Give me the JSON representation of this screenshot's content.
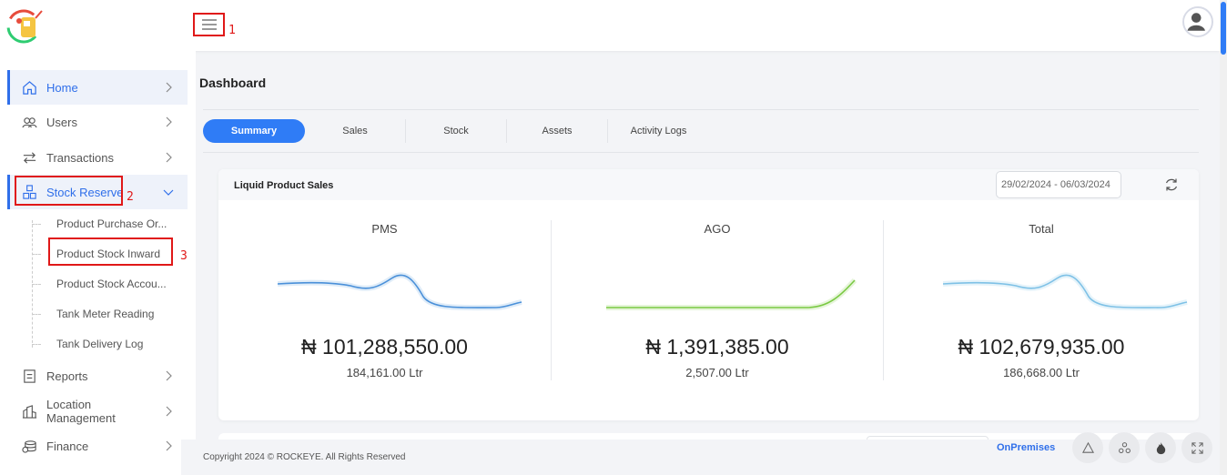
{
  "header": {
    "menu_annotation": "1",
    "avatar_icon": "user-avatar-icon"
  },
  "sidebar": {
    "items": [
      {
        "label": "Home",
        "icon": "home-icon"
      },
      {
        "label": "Users",
        "icon": "users-icon"
      },
      {
        "label": "Transactions",
        "icon": "transactions-icon"
      },
      {
        "label": "Stock Reserve",
        "icon": "stock-icon",
        "annotation": "2"
      },
      {
        "label": "Reports",
        "icon": "reports-icon"
      },
      {
        "label": "Location Management",
        "icon": "location-icon"
      },
      {
        "label": "Finance",
        "icon": "finance-icon"
      }
    ],
    "sub_items": [
      {
        "label": "Product Purchase Or..."
      },
      {
        "label": "Product Stock Inward",
        "annotation": "3"
      },
      {
        "label": "Product Stock Accou..."
      },
      {
        "label": "Tank Meter Reading"
      },
      {
        "label": "Tank Delivery Log"
      }
    ]
  },
  "main": {
    "title": "Dashboard",
    "tabs": [
      {
        "label": "Summary"
      },
      {
        "label": "Sales"
      },
      {
        "label": "Stock"
      },
      {
        "label": "Assets"
      },
      {
        "label": "Activity Logs"
      }
    ],
    "card": {
      "title": "Liquid Product Sales",
      "date_range": "29/02/2024 - 06/03/2024",
      "metrics": [
        {
          "name": "PMS",
          "amount": "₦ 101,288,550.00",
          "volume": "184,161.00 Ltr",
          "color": "#4a90d9"
        },
        {
          "name": "AGO",
          "amount": "₦ 1,391,385.00",
          "volume": "2,507.00 Ltr",
          "color": "#7ac943"
        },
        {
          "name": "Total",
          "amount": "₦ 102,679,935.00",
          "volume": "186,668.00 Ltr",
          "color": "#7ec1e6"
        }
      ]
    }
  },
  "footer": {
    "copyright": "Copyright 2024 © ROCKEYE. All Rights Reserved",
    "mode": "OnPremises"
  },
  "colors": {
    "accent": "#2f7cf6",
    "annotation": "#e01818"
  }
}
